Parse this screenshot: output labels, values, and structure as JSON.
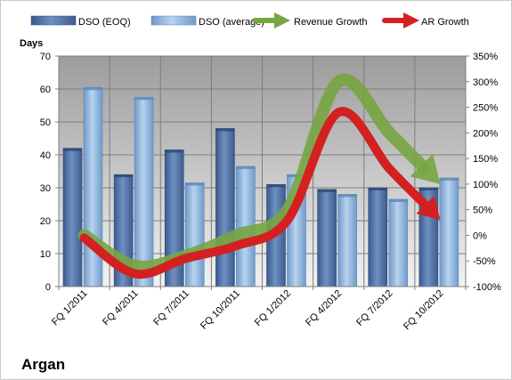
{
  "chart_data": {
    "type": "bar",
    "caption": "Argan",
    "y_left_label": "Days",
    "ylim_left": [
      0,
      70
    ],
    "ylim_right": [
      -100,
      350
    ],
    "left_ticks": [
      "0",
      "10",
      "20",
      "30",
      "40",
      "50",
      "60",
      "70"
    ],
    "right_ticks": [
      "-100%",
      "-50%",
      "0%",
      "50%",
      "100%",
      "150%",
      "200%",
      "250%",
      "300%",
      "350%"
    ],
    "categories": [
      "FQ 1/2011",
      "FQ 4/2011",
      "FQ 7/2011",
      "FQ 10/2011",
      "FQ 1/2012",
      "FQ 4/2012",
      "FQ 7/2012",
      "FQ 10/2012"
    ],
    "grid": true,
    "legend_position": "top",
    "bar_series": [
      {
        "name": "DSO (EOQ)",
        "axis": "left",
        "values": [
          42,
          34,
          41.5,
          48,
          31,
          29.5,
          30,
          30
        ],
        "color": "#4f6fa0"
      },
      {
        "name": "DSO (average)",
        "axis": "left",
        "values": [
          60.5,
          57.5,
          31.5,
          36.5,
          34,
          28,
          26.5,
          33
        ],
        "color": "#8fb4dc"
      }
    ],
    "line_series": [
      {
        "name": "Revenue Growth",
        "axis": "right",
        "x": [
          0,
          1,
          2,
          3,
          4,
          5,
          6,
          7
        ],
        "values": [
          0,
          -60,
          -40,
          0,
          50,
          300,
          200,
          100
        ],
        "color": "#77a541"
      },
      {
        "name": "AR Growth",
        "axis": "right",
        "x": [
          0,
          1,
          2,
          3,
          4,
          5,
          6,
          7
        ],
        "values": [
          -5,
          -75,
          -45,
          -20,
          30,
          240,
          130,
          30
        ],
        "color": "#d42020"
      }
    ]
  }
}
